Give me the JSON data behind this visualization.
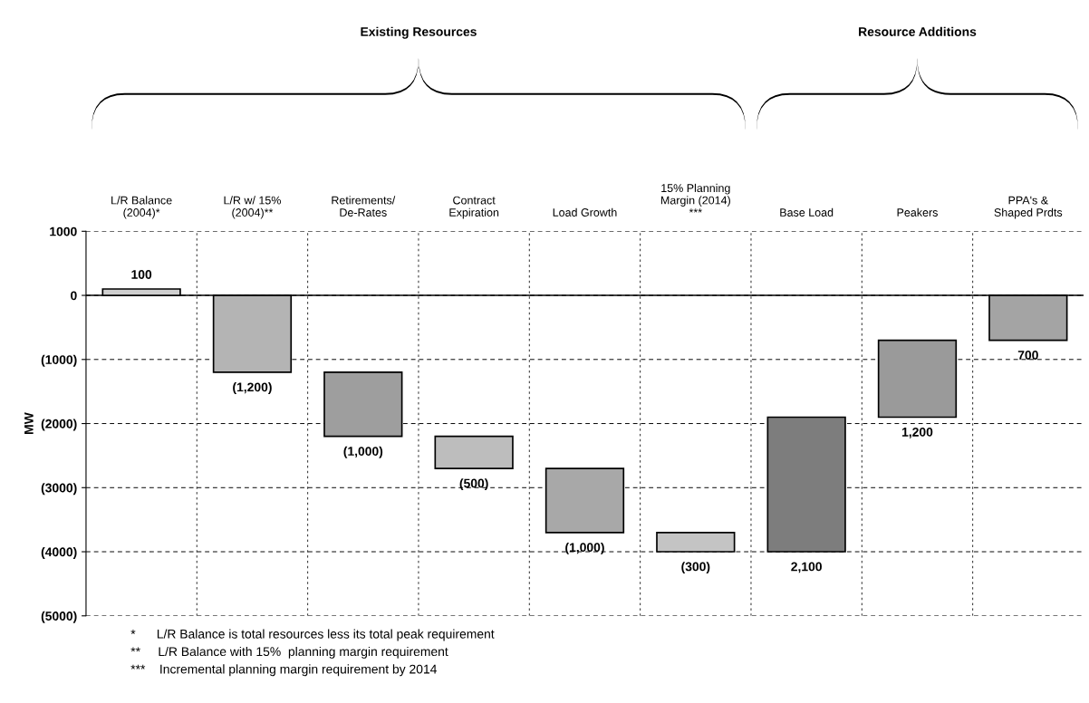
{
  "chart_data": {
    "type": "bar",
    "ylabel": "MW",
    "categories": [
      "L/R Balance\n(2004)*",
      "L/R w/ 15%\n(2004)**",
      "Retirements/\nDe-Rates",
      "Contract\nExpiration",
      "Load Growth",
      "15% Planning\nMargin (2014)\n***",
      "Base Load",
      "Peakers",
      "PPA's &\nShaped Prdts"
    ],
    "values": [
      100,
      -1200,
      -1000,
      -500,
      -1000,
      -300,
      2100,
      1200,
      700
    ],
    "base": [
      0,
      0,
      -1200,
      -2200,
      -2700,
      -3700,
      -4000,
      -1900,
      -700
    ],
    "colors": [
      "#cfcfcf",
      "#b4b4b4",
      "#9e9e9e",
      "#bdbdbd",
      "#a8a8a8",
      "#c4c4c4",
      "#7d7d7d",
      "#9a9a9a",
      "#a4a4a4"
    ],
    "value_labels": [
      "100",
      "(1,200)",
      "(1,000)",
      "(500)",
      "(1,000)",
      "(300)",
      "2,100",
      "1,200",
      "700"
    ],
    "ylim": [
      -5000,
      1000
    ],
    "yticks": [
      {
        "value": 1000,
        "label": "1000"
      },
      {
        "value": 0,
        "label": "0"
      },
      {
        "value": -1000,
        "label": "(1000)"
      },
      {
        "value": -2000,
        "label": "(2000)"
      },
      {
        "value": -3000,
        "label": "(3000)"
      },
      {
        "value": -4000,
        "label": "(4000)"
      },
      {
        "value": -5000,
        "label": "(5000)"
      }
    ],
    "grid": true,
    "ref_lines": [
      {
        "axis": "y",
        "value": 0,
        "color": "#000000",
        "line_style": "solid"
      }
    ],
    "annotations": [
      "Existing Resources",
      "Resource Additions",
      "*      L/R Balance is total resources less its total peak requirement",
      "**     L/R Balance with 15%  planning margin requirement",
      "***    Incremental planning margin requirement by 2014"
    ]
  }
}
